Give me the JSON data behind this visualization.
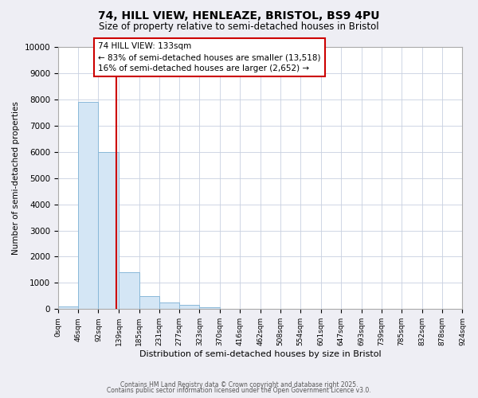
{
  "title_line1": "74, HILL VIEW, HENLEAZE, BRISTOL, BS9 4PU",
  "title_line2": "Size of property relative to semi-detached houses in Bristol",
  "xlabel": "Distribution of semi-detached houses by size in Bristol",
  "ylabel": "Number of semi-detached properties",
  "bar_values": [
    100,
    7900,
    6000,
    1400,
    500,
    250,
    150,
    80,
    10,
    0,
    0,
    0,
    0,
    0,
    0,
    0,
    0,
    0,
    0,
    0
  ],
  "bin_edges": [
    0,
    46,
    92,
    139,
    185,
    231,
    277,
    323,
    370,
    416,
    462,
    508,
    554,
    601,
    647,
    693,
    739,
    785,
    832,
    878,
    924
  ],
  "tick_labels": [
    "0sqm",
    "46sqm",
    "92sqm",
    "139sqm",
    "185sqm",
    "231sqm",
    "277sqm",
    "323sqm",
    "370sqm",
    "416sqm",
    "462sqm",
    "508sqm",
    "554sqm",
    "601sqm",
    "647sqm",
    "693sqm",
    "739sqm",
    "785sqm",
    "832sqm",
    "878sqm",
    "924sqm"
  ],
  "bar_color": "#d4e6f5",
  "bar_edge_color": "#89b8d8",
  "property_size": 133,
  "property_line_color": "#cc0000",
  "annotation_line1": "74 HILL VIEW: 133sqm",
  "annotation_line2": "← 83% of semi-detached houses are smaller (13,518)",
  "annotation_line3": "16% of semi-detached houses are larger (2,652) →",
  "annotation_box_color": "#ffffff",
  "annotation_box_edge_color": "#cc0000",
  "ylim": [
    0,
    10000
  ],
  "yticks": [
    0,
    1000,
    2000,
    3000,
    4000,
    5000,
    6000,
    7000,
    8000,
    9000,
    10000
  ],
  "footer_line1": "Contains HM Land Registry data © Crown copyright and database right 2025.",
  "footer_line2": "Contains public sector information licensed under the Open Government Licence v3.0.",
  "background_color": "#eeeef4",
  "plot_background_color": "#ffffff",
  "grid_color": "#c8d0e0"
}
